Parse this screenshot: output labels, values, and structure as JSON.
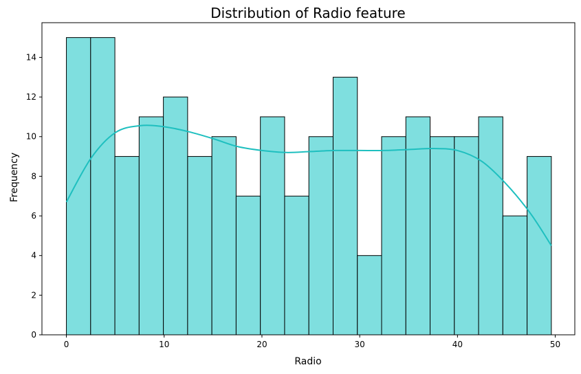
{
  "chart_data": {
    "type": "bar",
    "subtype": "histogram",
    "title": "Distribution of Radio feature",
    "xlabel": "Radio",
    "ylabel": "Frequency",
    "xlim": [
      -2.5,
      52.0
    ],
    "ylim": [
      0,
      15.75
    ],
    "x_ticks": [
      0,
      10,
      20,
      30,
      40,
      50
    ],
    "y_ticks": [
      0,
      2,
      4,
      6,
      8,
      10,
      12,
      14
    ],
    "bin_start": 0.0,
    "bin_width": 2.48,
    "values": [
      15,
      15,
      9,
      11,
      12,
      9,
      10,
      7,
      11,
      7,
      10,
      13,
      4,
      10,
      11,
      10,
      10,
      11,
      6,
      9
    ],
    "bar_color": "#7fdfdf",
    "edge_color": "#000000",
    "kde": {
      "color": "#1ebfbf",
      "x": [
        0,
        2.5,
        5,
        7.5,
        10,
        12.5,
        15,
        17.5,
        20,
        22.5,
        25,
        27.5,
        30,
        32.5,
        35,
        37.5,
        40,
        42.5,
        45,
        47.5,
        49.6
      ],
      "y": [
        6.7,
        8.9,
        10.2,
        10.55,
        10.5,
        10.25,
        9.9,
        9.5,
        9.3,
        9.2,
        9.25,
        9.3,
        9.3,
        9.3,
        9.35,
        9.4,
        9.3,
        8.75,
        7.6,
        6.1,
        4.5
      ]
    },
    "grid": false,
    "legend": "none"
  }
}
